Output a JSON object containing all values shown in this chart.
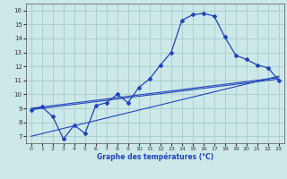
{
  "xlabel": "Graphe des températures (°C)",
  "background_color": "#cce8e8",
  "grid_color": "#aacccc",
  "line_color": "#2244bb",
  "xlim": [
    -0.5,
    23.5
  ],
  "ylim": [
    6.5,
    16.5
  ],
  "xticks": [
    0,
    1,
    2,
    3,
    4,
    5,
    6,
    7,
    8,
    9,
    10,
    11,
    12,
    13,
    14,
    15,
    16,
    17,
    18,
    19,
    20,
    21,
    22,
    23
  ],
  "yticks": [
    7,
    8,
    9,
    10,
    11,
    12,
    13,
    14,
    15,
    16
  ],
  "curve1_x": [
    0,
    1,
    2,
    3,
    4,
    5,
    6,
    7,
    8,
    9,
    10,
    11,
    12,
    13,
    14,
    15,
    16,
    17,
    18,
    19,
    20,
    21,
    22,
    23
  ],
  "curve1_y": [
    8.9,
    9.1,
    8.4,
    6.8,
    7.8,
    7.2,
    9.2,
    9.4,
    10.0,
    9.4,
    10.5,
    11.1,
    12.1,
    13.0,
    15.3,
    15.7,
    15.8,
    15.6,
    14.1,
    12.8,
    12.5,
    12.1,
    11.9,
    11.0
  ],
  "line1_x": [
    0,
    23
  ],
  "line1_y": [
    8.9,
    11.1
  ],
  "line2_x": [
    0,
    23
  ],
  "line2_y": [
    9.0,
    11.2
  ],
  "line3_x": [
    0,
    23
  ],
  "line3_y": [
    7.0,
    11.3
  ]
}
